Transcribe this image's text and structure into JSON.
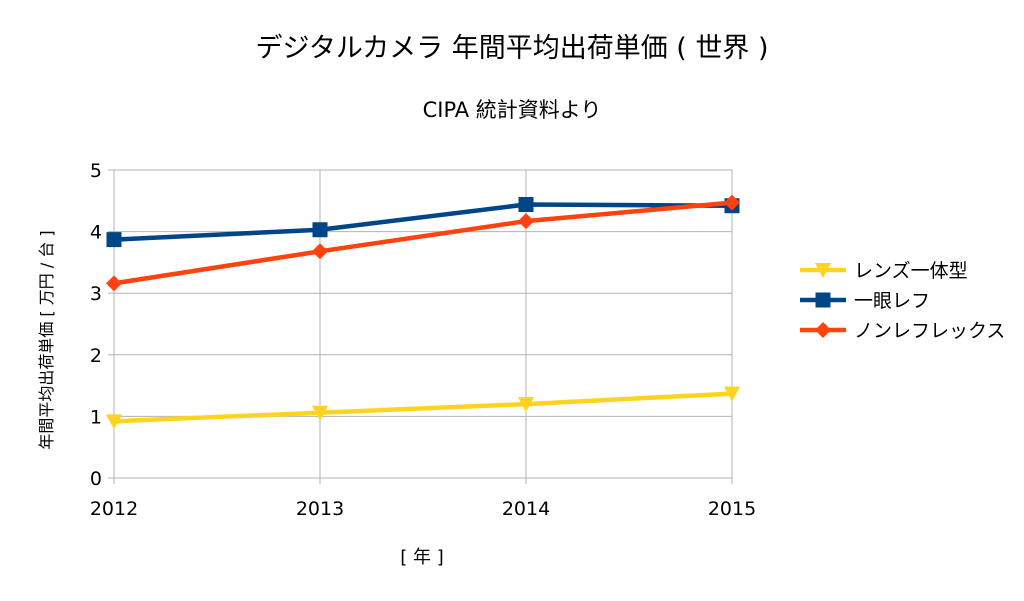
{
  "chart_data": {
    "type": "line",
    "title": "デジタルカメラ 年間平均出荷単価 ( 世界 )",
    "subtitle": "CIPA 統計資料より",
    "xlabel": "[ 年 ]",
    "ylabel": "年間平均出荷単価 [ 万円 / 台 ]",
    "categories": [
      "2012",
      "2013",
      "2014",
      "2015"
    ],
    "ylim": [
      0,
      5
    ],
    "yticks": [
      "0",
      "1",
      "2",
      "3",
      "4",
      "5"
    ],
    "grid": true,
    "legend_position": "right",
    "series": [
      {
        "name": "レンズ一体型",
        "values": [
          0.92,
          1.06,
          1.2,
          1.37
        ],
        "color": "#ffd320",
        "marker": "triangle-down"
      },
      {
        "name": "一眼レフ",
        "values": [
          3.87,
          4.03,
          4.44,
          4.42
        ],
        "color": "#004586",
        "marker": "square"
      },
      {
        "name": "ノンレフレックス",
        "values": [
          3.16,
          3.68,
          4.17,
          4.47
        ],
        "color": "#ff420e",
        "marker": "diamond"
      }
    ]
  }
}
